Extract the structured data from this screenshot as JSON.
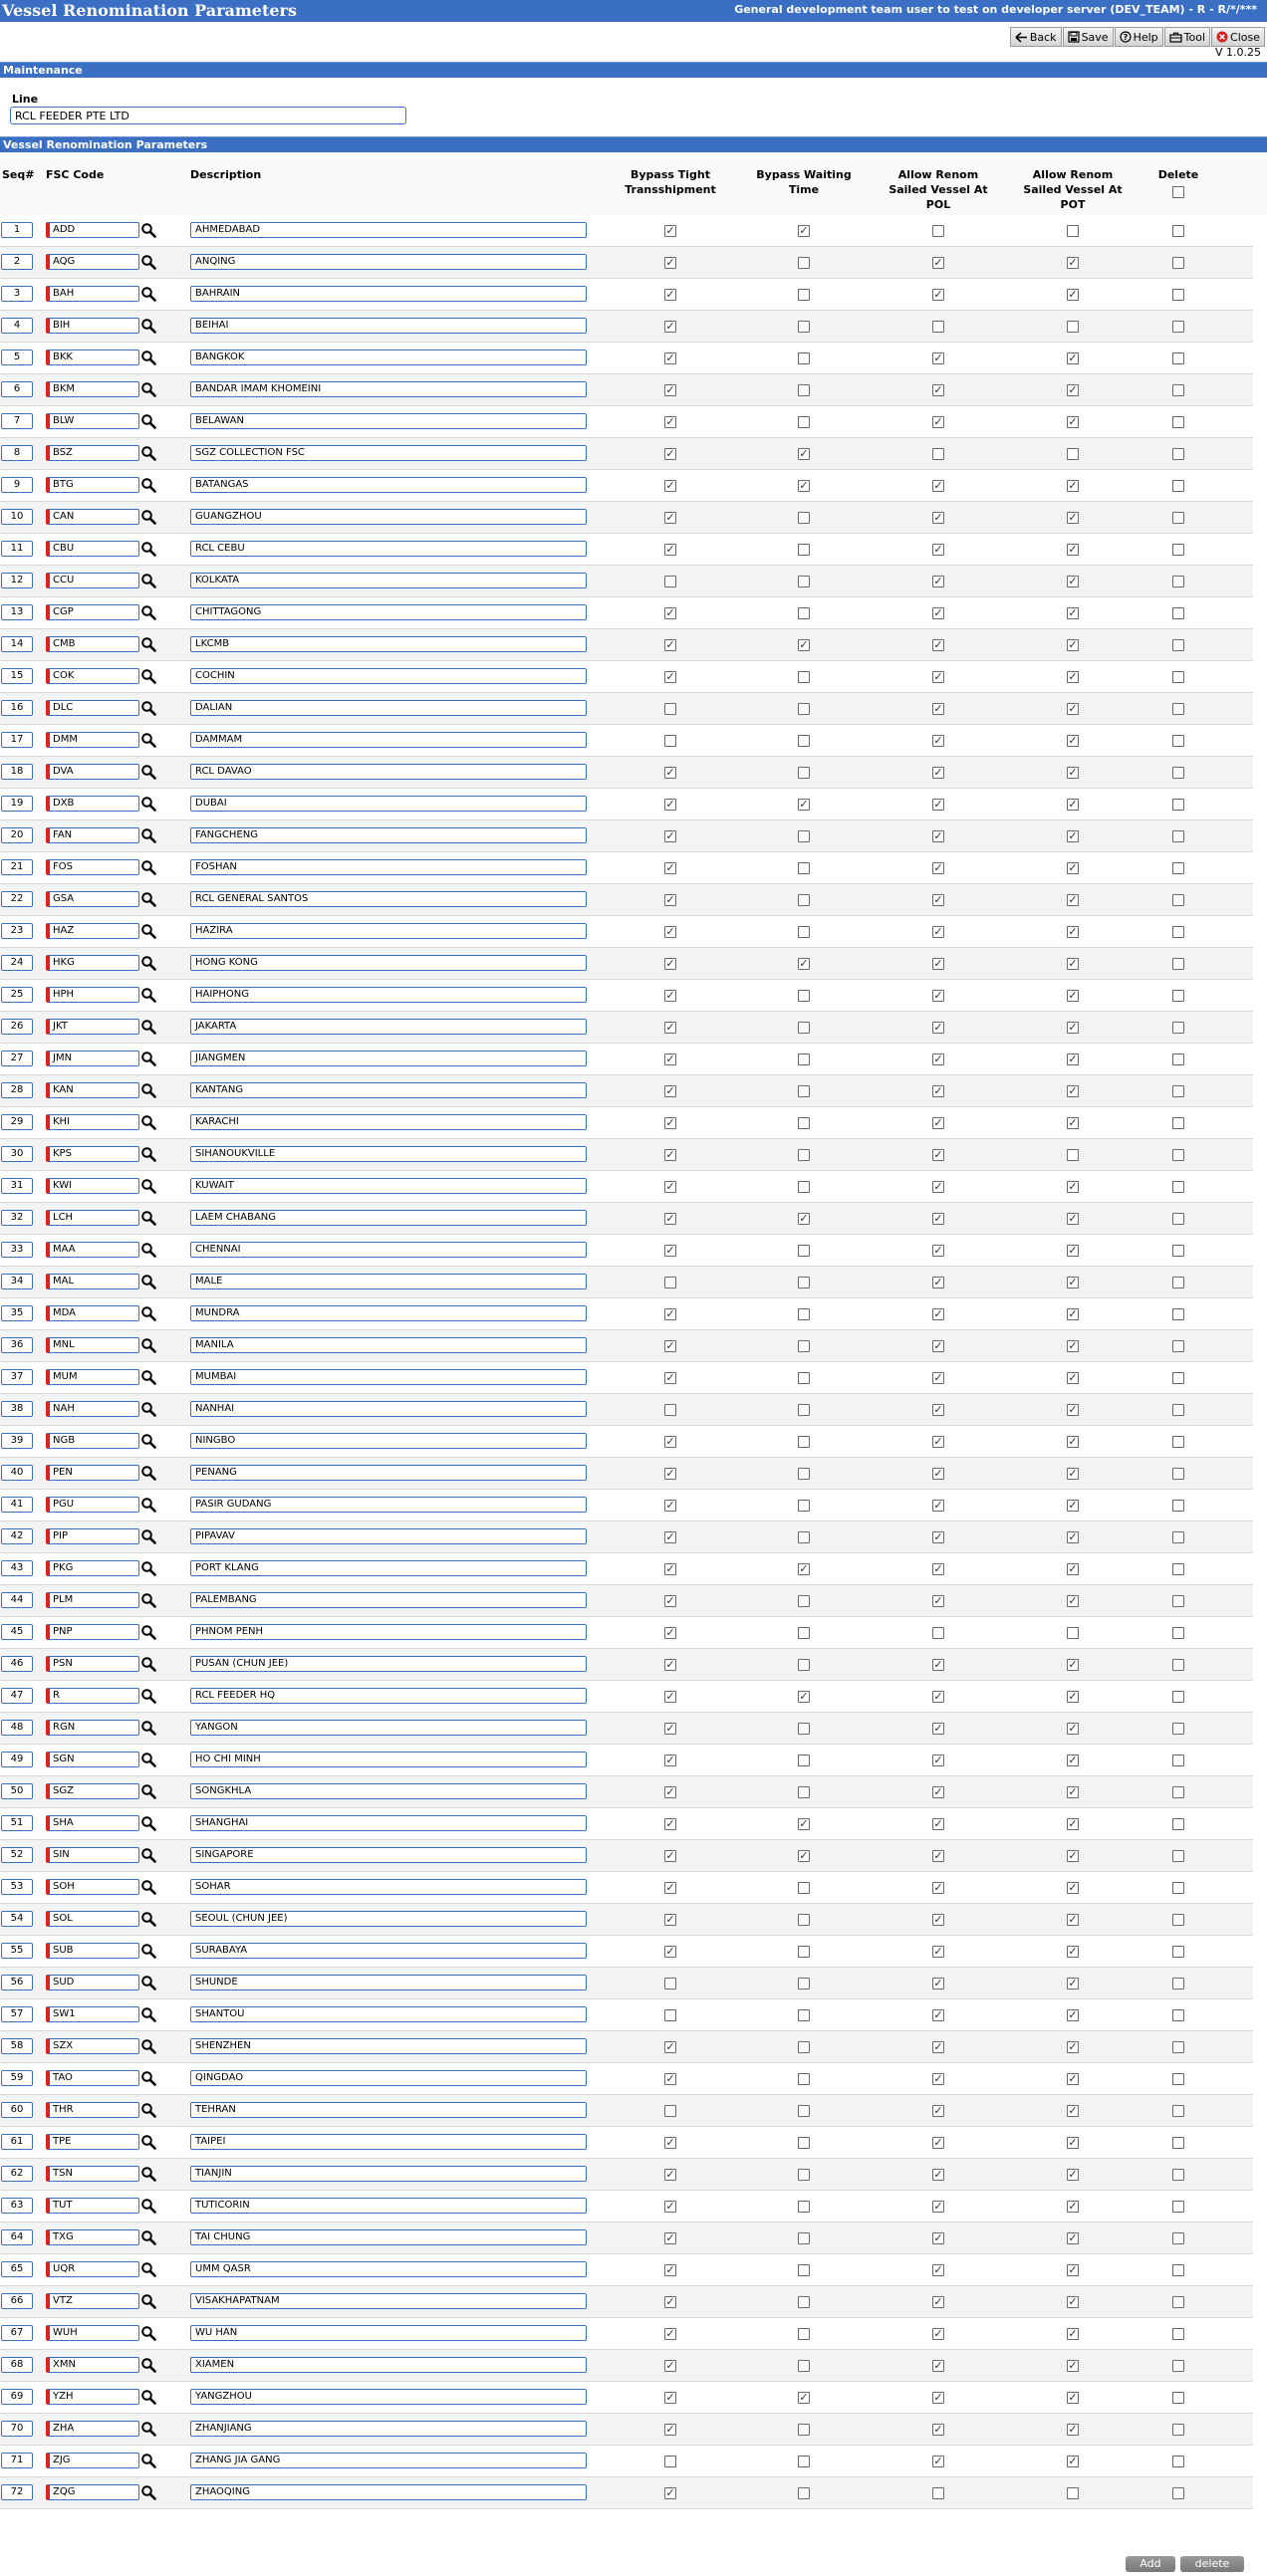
{
  "app": {
    "title": "Vessel Renomination Parameters",
    "user_info": "General development team user to test on developer server (DEV_TEAM) - R - R/*/***",
    "version": "V 1.0.25"
  },
  "toolbar": {
    "back": "Back",
    "save": "Save",
    "help": "Help",
    "tool": "Tool",
    "close": "Close"
  },
  "maintenance": {
    "section_title": "Maintenance",
    "line_label": "Line",
    "line_value": "RCL FEEDER PTE LTD"
  },
  "params": {
    "section_title": "Vessel Renomination Parameters"
  },
  "columns": {
    "seq": "Seq#",
    "fsc_code": "FSC Code",
    "description": "Description",
    "bypass_tight": [
      "Bypass Tight",
      "Transshipment"
    ],
    "bypass_waiting": [
      "Bypass Waiting",
      "Time"
    ],
    "allow_pol": [
      "Allow Renom",
      "Sailed Vessel At",
      "POL"
    ],
    "allow_pot": [
      "Allow Renom",
      "Sailed Vessel At",
      "POT"
    ],
    "delete": "Delete"
  },
  "rows": [
    {
      "seq": "1",
      "code": "ADD",
      "desc": "AHMEDABAD",
      "bt": 1,
      "bw": 1,
      "pol": 0,
      "pot": 0,
      "del": 0
    },
    {
      "seq": "2",
      "code": "AQG",
      "desc": "ANQING",
      "bt": 1,
      "bw": 0,
      "pol": 1,
      "pot": 1,
      "del": 0
    },
    {
      "seq": "3",
      "code": "BAH",
      "desc": "BAHRAIN",
      "bt": 1,
      "bw": 0,
      "pol": 1,
      "pot": 1,
      "del": 0
    },
    {
      "seq": "4",
      "code": "BIH",
      "desc": "BEIHAI",
      "bt": 1,
      "bw": 0,
      "pol": 0,
      "pot": 0,
      "del": 0
    },
    {
      "seq": "5",
      "code": "BKK",
      "desc": "BANGKOK",
      "bt": 1,
      "bw": 0,
      "pol": 1,
      "pot": 1,
      "del": 0
    },
    {
      "seq": "6",
      "code": "BKM",
      "desc": "BANDAR IMAM KHOMEINI",
      "bt": 1,
      "bw": 0,
      "pol": 1,
      "pot": 1,
      "del": 0
    },
    {
      "seq": "7",
      "code": "BLW",
      "desc": "BELAWAN",
      "bt": 1,
      "bw": 0,
      "pol": 1,
      "pot": 1,
      "del": 0
    },
    {
      "seq": "8",
      "code": "BSZ",
      "desc": "SGZ COLLECTION FSC",
      "bt": 1,
      "bw": 1,
      "pol": 0,
      "pot": 0,
      "del": 0
    },
    {
      "seq": "9",
      "code": "BTG",
      "desc": "BATANGAS",
      "bt": 1,
      "bw": 1,
      "pol": 1,
      "pot": 1,
      "del": 0
    },
    {
      "seq": "10",
      "code": "CAN",
      "desc": "GUANGZHOU",
      "bt": 1,
      "bw": 0,
      "pol": 1,
      "pot": 1,
      "del": 0
    },
    {
      "seq": "11",
      "code": "CBU",
      "desc": "RCL CEBU",
      "bt": 1,
      "bw": 0,
      "pol": 1,
      "pot": 1,
      "del": 0
    },
    {
      "seq": "12",
      "code": "CCU",
      "desc": "KOLKATA",
      "bt": 0,
      "bw": 0,
      "pol": 1,
      "pot": 1,
      "del": 0
    },
    {
      "seq": "13",
      "code": "CGP",
      "desc": "CHITTAGONG",
      "bt": 1,
      "bw": 0,
      "pol": 1,
      "pot": 1,
      "del": 0
    },
    {
      "seq": "14",
      "code": "CMB",
      "desc": "LKCMB",
      "bt": 1,
      "bw": 1,
      "pol": 1,
      "pot": 1,
      "del": 0
    },
    {
      "seq": "15",
      "code": "COK",
      "desc": "COCHIN",
      "bt": 1,
      "bw": 0,
      "pol": 1,
      "pot": 1,
      "del": 0
    },
    {
      "seq": "16",
      "code": "DLC",
      "desc": "DALIAN",
      "bt": 0,
      "bw": 0,
      "pol": 1,
      "pot": 1,
      "del": 0
    },
    {
      "seq": "17",
      "code": "DMM",
      "desc": "DAMMAM",
      "bt": 0,
      "bw": 0,
      "pol": 1,
      "pot": 1,
      "del": 0
    },
    {
      "seq": "18",
      "code": "DVA",
      "desc": "RCL DAVAO",
      "bt": 1,
      "bw": 0,
      "pol": 1,
      "pot": 1,
      "del": 0
    },
    {
      "seq": "19",
      "code": "DXB",
      "desc": "DUBAI",
      "bt": 1,
      "bw": 1,
      "pol": 1,
      "pot": 1,
      "del": 0
    },
    {
      "seq": "20",
      "code": "FAN",
      "desc": "FANGCHENG",
      "bt": 1,
      "bw": 0,
      "pol": 1,
      "pot": 1,
      "del": 0
    },
    {
      "seq": "21",
      "code": "FOS",
      "desc": "FOSHAN",
      "bt": 1,
      "bw": 0,
      "pol": 1,
      "pot": 1,
      "del": 0
    },
    {
      "seq": "22",
      "code": "GSA",
      "desc": "RCL GENERAL SANTOS",
      "bt": 1,
      "bw": 0,
      "pol": 1,
      "pot": 1,
      "del": 0
    },
    {
      "seq": "23",
      "code": "HAZ",
      "desc": "HAZIRA",
      "bt": 1,
      "bw": 0,
      "pol": 1,
      "pot": 1,
      "del": 0
    },
    {
      "seq": "24",
      "code": "HKG",
      "desc": "HONG KONG",
      "bt": 1,
      "bw": 1,
      "pol": 1,
      "pot": 1,
      "del": 0
    },
    {
      "seq": "25",
      "code": "HPH",
      "desc": "HAIPHONG",
      "bt": 1,
      "bw": 0,
      "pol": 1,
      "pot": 1,
      "del": 0
    },
    {
      "seq": "26",
      "code": "JKT",
      "desc": "JAKARTA",
      "bt": 1,
      "bw": 0,
      "pol": 1,
      "pot": 1,
      "del": 0
    },
    {
      "seq": "27",
      "code": "JMN",
      "desc": "JIANGMEN",
      "bt": 1,
      "bw": 0,
      "pol": 1,
      "pot": 1,
      "del": 0
    },
    {
      "seq": "28",
      "code": "KAN",
      "desc": "KANTANG",
      "bt": 1,
      "bw": 0,
      "pol": 1,
      "pot": 1,
      "del": 0
    },
    {
      "seq": "29",
      "code": "KHI",
      "desc": "KARACHI",
      "bt": 1,
      "bw": 0,
      "pol": 1,
      "pot": 1,
      "del": 0
    },
    {
      "seq": "30",
      "code": "KPS",
      "desc": "SIHANOUKVILLE",
      "bt": 1,
      "bw": 0,
      "pol": 1,
      "pot": 0,
      "del": 0
    },
    {
      "seq": "31",
      "code": "KWI",
      "desc": "KUWAIT",
      "bt": 1,
      "bw": 0,
      "pol": 1,
      "pot": 1,
      "del": 0
    },
    {
      "seq": "32",
      "code": "LCH",
      "desc": "LAEM CHABANG",
      "bt": 1,
      "bw": 1,
      "pol": 1,
      "pot": 1,
      "del": 0
    },
    {
      "seq": "33",
      "code": "MAA",
      "desc": "CHENNAI",
      "bt": 1,
      "bw": 0,
      "pol": 1,
      "pot": 1,
      "del": 0
    },
    {
      "seq": "34",
      "code": "MAL",
      "desc": "MALE",
      "bt": 0,
      "bw": 0,
      "pol": 1,
      "pot": 1,
      "del": 0
    },
    {
      "seq": "35",
      "code": "MDA",
      "desc": "MUNDRA",
      "bt": 1,
      "bw": 0,
      "pol": 1,
      "pot": 1,
      "del": 0
    },
    {
      "seq": "36",
      "code": "MNL",
      "desc": "MANILA",
      "bt": 1,
      "bw": 0,
      "pol": 1,
      "pot": 1,
      "del": 0
    },
    {
      "seq": "37",
      "code": "MUM",
      "desc": "MUMBAI",
      "bt": 1,
      "bw": 0,
      "pol": 1,
      "pot": 1,
      "del": 0
    },
    {
      "seq": "38",
      "code": "NAH",
      "desc": "NANHAI",
      "bt": 0,
      "bw": 0,
      "pol": 1,
      "pot": 1,
      "del": 0
    },
    {
      "seq": "39",
      "code": "NGB",
      "desc": "NINGBO",
      "bt": 1,
      "bw": 0,
      "pol": 1,
      "pot": 1,
      "del": 0
    },
    {
      "seq": "40",
      "code": "PEN",
      "desc": "PENANG",
      "bt": 1,
      "bw": 0,
      "pol": 1,
      "pot": 1,
      "del": 0
    },
    {
      "seq": "41",
      "code": "PGU",
      "desc": "PASIR GUDANG",
      "bt": 1,
      "bw": 0,
      "pol": 1,
      "pot": 1,
      "del": 0
    },
    {
      "seq": "42",
      "code": "PIP",
      "desc": "PIPAVAV",
      "bt": 1,
      "bw": 0,
      "pol": 1,
      "pot": 1,
      "del": 0
    },
    {
      "seq": "43",
      "code": "PKG",
      "desc": "PORT KLANG",
      "bt": 1,
      "bw": 1,
      "pol": 1,
      "pot": 1,
      "del": 0
    },
    {
      "seq": "44",
      "code": "PLM",
      "desc": "PALEMBANG",
      "bt": 1,
      "bw": 0,
      "pol": 1,
      "pot": 1,
      "del": 0
    },
    {
      "seq": "45",
      "code": "PNP",
      "desc": "PHNOM PENH",
      "bt": 1,
      "bw": 0,
      "pol": 0,
      "pot": 0,
      "del": 0
    },
    {
      "seq": "46",
      "code": "PSN",
      "desc": "PUSAN (CHUN JEE)",
      "bt": 1,
      "bw": 0,
      "pol": 1,
      "pot": 1,
      "del": 0
    },
    {
      "seq": "47",
      "code": "R",
      "desc": "RCL FEEDER HQ",
      "bt": 1,
      "bw": 1,
      "pol": 1,
      "pot": 1,
      "del": 0
    },
    {
      "seq": "48",
      "code": "RGN",
      "desc": "YANGON",
      "bt": 1,
      "bw": 0,
      "pol": 1,
      "pot": 1,
      "del": 0
    },
    {
      "seq": "49",
      "code": "SGN",
      "desc": "HO CHI MINH",
      "bt": 1,
      "bw": 0,
      "pol": 1,
      "pot": 1,
      "del": 0
    },
    {
      "seq": "50",
      "code": "SGZ",
      "desc": "SONGKHLA",
      "bt": 1,
      "bw": 0,
      "pol": 1,
      "pot": 1,
      "del": 0
    },
    {
      "seq": "51",
      "code": "SHA",
      "desc": "SHANGHAI",
      "bt": 1,
      "bw": 1,
      "pol": 1,
      "pot": 1,
      "del": 0
    },
    {
      "seq": "52",
      "code": "SIN",
      "desc": "SINGAPORE",
      "bt": 1,
      "bw": 1,
      "pol": 1,
      "pot": 1,
      "del": 0
    },
    {
      "seq": "53",
      "code": "SOH",
      "desc": "SOHAR",
      "bt": 1,
      "bw": 0,
      "pol": 1,
      "pot": 1,
      "del": 0
    },
    {
      "seq": "54",
      "code": "SOL",
      "desc": "SEOUL (CHUN JEE)",
      "bt": 1,
      "bw": 0,
      "pol": 1,
      "pot": 1,
      "del": 0
    },
    {
      "seq": "55",
      "code": "SUB",
      "desc": "SURABAYA",
      "bt": 1,
      "bw": 0,
      "pol": 1,
      "pot": 1,
      "del": 0
    },
    {
      "seq": "56",
      "code": "SUD",
      "desc": "SHUNDE",
      "bt": 0,
      "bw": 0,
      "pol": 1,
      "pot": 1,
      "del": 0
    },
    {
      "seq": "57",
      "code": "SW1",
      "desc": "SHANTOU",
      "bt": 0,
      "bw": 0,
      "pol": 1,
      "pot": 1,
      "del": 0
    },
    {
      "seq": "58",
      "code": "SZX",
      "desc": "SHENZHEN",
      "bt": 1,
      "bw": 0,
      "pol": 1,
      "pot": 1,
      "del": 0
    },
    {
      "seq": "59",
      "code": "TAO",
      "desc": "QINGDAO",
      "bt": 1,
      "bw": 0,
      "pol": 1,
      "pot": 1,
      "del": 0
    },
    {
      "seq": "60",
      "code": "THR",
      "desc": "TEHRAN",
      "bt": 0,
      "bw": 0,
      "pol": 1,
      "pot": 1,
      "del": 0
    },
    {
      "seq": "61",
      "code": "TPE",
      "desc": "TAIPEI",
      "bt": 1,
      "bw": 0,
      "pol": 1,
      "pot": 1,
      "del": 0
    },
    {
      "seq": "62",
      "code": "TSN",
      "desc": "TIANJIN",
      "bt": 1,
      "bw": 0,
      "pol": 1,
      "pot": 1,
      "del": 0
    },
    {
      "seq": "63",
      "code": "TUT",
      "desc": "TUTICORIN",
      "bt": 1,
      "bw": 0,
      "pol": 1,
      "pot": 1,
      "del": 0
    },
    {
      "seq": "64",
      "code": "TXG",
      "desc": "TAI CHUNG",
      "bt": 1,
      "bw": 0,
      "pol": 1,
      "pot": 1,
      "del": 0
    },
    {
      "seq": "65",
      "code": "UQR",
      "desc": "UMM QASR",
      "bt": 1,
      "bw": 0,
      "pol": 1,
      "pot": 1,
      "del": 0
    },
    {
      "seq": "66",
      "code": "VTZ",
      "desc": "VISAKHAPATNAM",
      "bt": 1,
      "bw": 0,
      "pol": 1,
      "pot": 1,
      "del": 0
    },
    {
      "seq": "67",
      "code": "WUH",
      "desc": "WU HAN",
      "bt": 1,
      "bw": 0,
      "pol": 1,
      "pot": 1,
      "del": 0
    },
    {
      "seq": "68",
      "code": "XMN",
      "desc": "XIAMEN",
      "bt": 1,
      "bw": 0,
      "pol": 1,
      "pot": 1,
      "del": 0
    },
    {
      "seq": "69",
      "code": "YZH",
      "desc": "YANGZHOU",
      "bt": 1,
      "bw": 1,
      "pol": 1,
      "pot": 1,
      "del": 0
    },
    {
      "seq": "70",
      "code": "ZHA",
      "desc": "ZHANJIANG",
      "bt": 1,
      "bw": 0,
      "pol": 1,
      "pot": 1,
      "del": 0
    },
    {
      "seq": "71",
      "code": "ZJG",
      "desc": "ZHANG JIA GANG",
      "bt": 0,
      "bw": 0,
      "pol": 1,
      "pot": 1,
      "del": 0
    },
    {
      "seq": "72",
      "code": "ZQG",
      "desc": "ZHAOQING",
      "bt": 1,
      "bw": 0,
      "pol": 0,
      "pot": 0,
      "del": 0
    }
  ],
  "footer": {
    "add": "Add",
    "delete": "delete"
  },
  "colors": {
    "accent": "#3b6fc4",
    "mandatory": "#e02020"
  }
}
